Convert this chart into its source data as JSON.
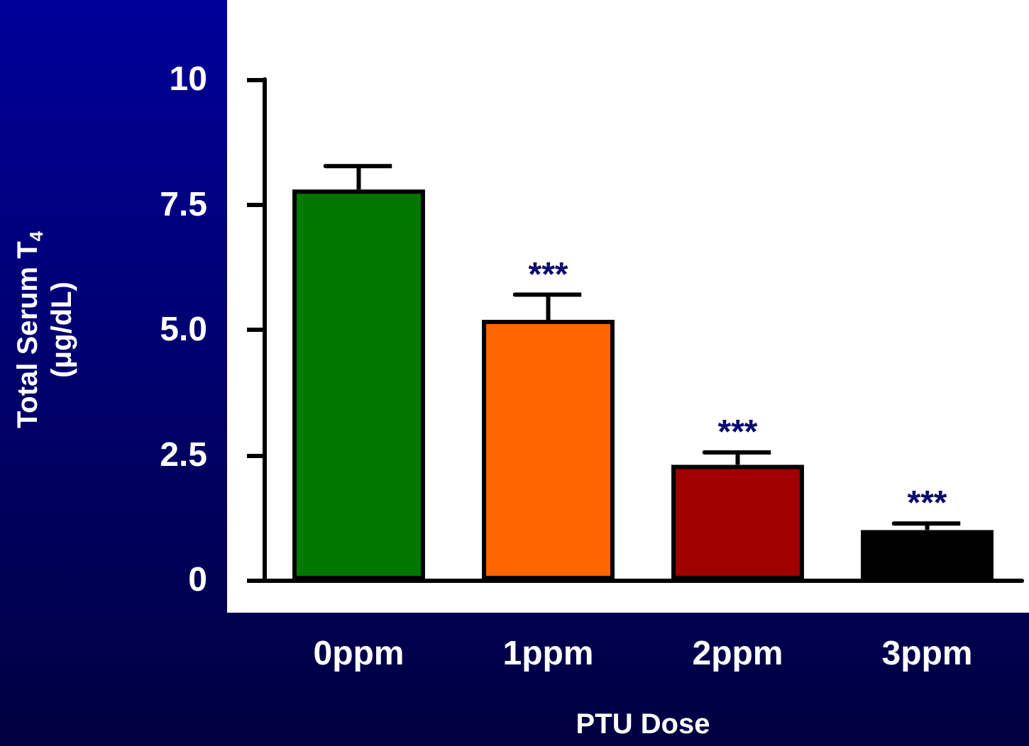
{
  "chart_data": {
    "type": "bar",
    "xlabel": "PTU Dose",
    "ylabel": "Total Serum T$_{4}$\n(μg/dL)",
    "categories": [
      "0ppm",
      "1ppm",
      "2ppm",
      "3ppm"
    ],
    "values": [
      7.8,
      5.2,
      2.3,
      1.0
    ],
    "colors": [
      "#007800",
      "#ff6600",
      "#a00000",
      "#000000"
    ],
    "errors": [
      [
        7.8,
        8.27
      ],
      [
        5.2,
        5.7
      ],
      [
        2.3,
        2.55
      ],
      [
        1.0,
        1.13
      ]
    ],
    "ylim": [
      0,
      10
    ],
    "yticks": [
      0,
      2.5,
      {
        "value": 5,
        "label": "5.0"
      },
      7.5,
      10
    ],
    "annotations": [
      "***",
      "***",
      "***"
    ]
  }
}
